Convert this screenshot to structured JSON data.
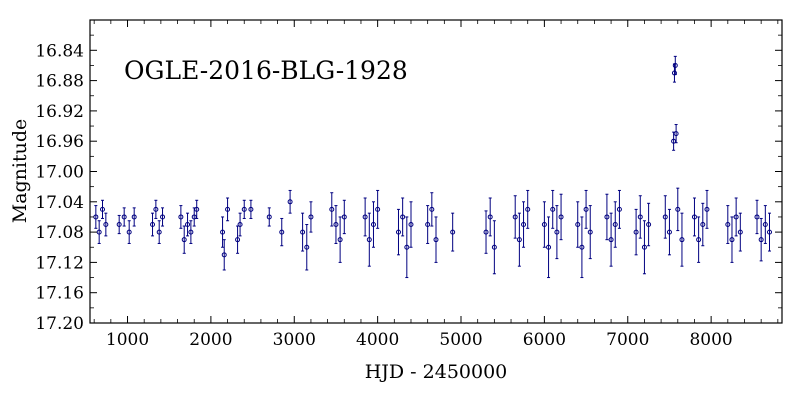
{
  "chart_data": {
    "type": "scatter",
    "annotation": "OGLE-2016-BLG-1928",
    "xlabel": "HJD - 2450000",
    "ylabel": "Magnitude",
    "xlim": [
      550,
      8850
    ],
    "ylim": [
      17.2,
      16.8
    ],
    "y_inverted": true,
    "grid": false,
    "legend": "none",
    "x_ticks": [
      1000,
      2000,
      3000,
      4000,
      5000,
      6000,
      7000,
      8000
    ],
    "x_tick_labels": [
      "1000",
      "2000",
      "3000",
      "4000",
      "5000",
      "6000",
      "7000",
      "8000"
    ],
    "y_ticks": [
      16.84,
      16.88,
      16.92,
      16.96,
      17.0,
      17.04,
      17.08,
      17.12,
      17.16,
      17.2
    ],
    "y_tick_labels": [
      "16.84",
      "16.88",
      "16.92",
      "16.96",
      "17.00",
      "17.04",
      "17.08",
      "17.12",
      "17.16",
      "17.20"
    ],
    "point_color": "#000080",
    "series": [
      {
        "marker": "open-circle-with-error-bars",
        "x": [
          620,
          660,
          700,
          740,
          900,
          960,
          1020,
          1080,
          1300,
          1340,
          1380,
          1420,
          1640,
          1680,
          1720,
          1760,
          1800,
          1830,
          2140,
          2160,
          2200,
          2320,
          2350,
          2400,
          2480,
          2700,
          2850,
          2950,
          3100,
          3150,
          3200,
          3450,
          3500,
          3550,
          3600,
          3850,
          3900,
          3950,
          4000,
          4250,
          4300,
          4350,
          4400,
          4600,
          4650,
          4700,
          4900,
          5300,
          5350,
          5400,
          5650,
          5700,
          5750,
          5800,
          6000,
          6050,
          6100,
          6150,
          6200,
          6400,
          6450,
          6500,
          6550,
          6750,
          6800,
          6850,
          6900,
          7100,
          7150,
          7200,
          7250,
          7450,
          7500,
          7550,
          7560,
          7570,
          7580,
          7600,
          7650,
          7800,
          7850,
          7900,
          7950,
          8200,
          8250,
          8300,
          8350,
          8550,
          8600,
          8650,
          8700
        ],
        "y": [
          17.06,
          17.08,
          17.05,
          17.07,
          17.07,
          17.06,
          17.08,
          17.06,
          17.07,
          17.05,
          17.08,
          17.06,
          17.06,
          17.09,
          17.07,
          17.08,
          17.06,
          17.05,
          17.08,
          17.11,
          17.05,
          17.09,
          17.07,
          17.05,
          17.05,
          17.06,
          17.08,
          17.04,
          17.08,
          17.1,
          17.06,
          17.05,
          17.07,
          17.09,
          17.06,
          17.06,
          17.09,
          17.07,
          17.05,
          17.08,
          17.06,
          17.1,
          17.07,
          17.07,
          17.05,
          17.09,
          17.08,
          17.08,
          17.06,
          17.1,
          17.06,
          17.09,
          17.07,
          17.05,
          17.07,
          17.1,
          17.05,
          17.08,
          17.06,
          17.07,
          17.1,
          17.05,
          17.08,
          17.06,
          17.09,
          17.07,
          17.05,
          17.08,
          17.06,
          17.1,
          17.07,
          17.06,
          17.08,
          16.96,
          16.87,
          16.86,
          16.95,
          17.05,
          17.09,
          17.06,
          17.09,
          17.07,
          17.05,
          17.07,
          17.09,
          17.06,
          17.08,
          17.06,
          17.09,
          17.07,
          17.08
        ],
        "yerr": [
          0.015,
          0.015,
          0.012,
          0.015,
          0.012,
          0.012,
          0.015,
          0.012,
          0.015,
          0.012,
          0.015,
          0.012,
          0.015,
          0.018,
          0.015,
          0.015,
          0.012,
          0.012,
          0.02,
          0.02,
          0.015,
          0.018,
          0.015,
          0.012,
          0.012,
          0.012,
          0.018,
          0.015,
          0.025,
          0.03,
          0.02,
          0.022,
          0.025,
          0.03,
          0.022,
          0.025,
          0.035,
          0.03,
          0.025,
          0.03,
          0.025,
          0.04,
          0.03,
          0.025,
          0.022,
          0.03,
          0.025,
          0.028,
          0.025,
          0.035,
          0.028,
          0.035,
          0.03,
          0.025,
          0.03,
          0.04,
          0.025,
          0.035,
          0.03,
          0.03,
          0.04,
          0.025,
          0.035,
          0.03,
          0.035,
          0.03,
          0.025,
          0.03,
          0.028,
          0.035,
          0.028,
          0.028,
          0.03,
          0.012,
          0.012,
          0.012,
          0.012,
          0.028,
          0.035,
          0.025,
          0.03,
          0.028,
          0.025,
          0.025,
          0.03,
          0.025,
          0.025,
          0.022,
          0.028,
          0.025,
          0.025
        ]
      }
    ]
  }
}
